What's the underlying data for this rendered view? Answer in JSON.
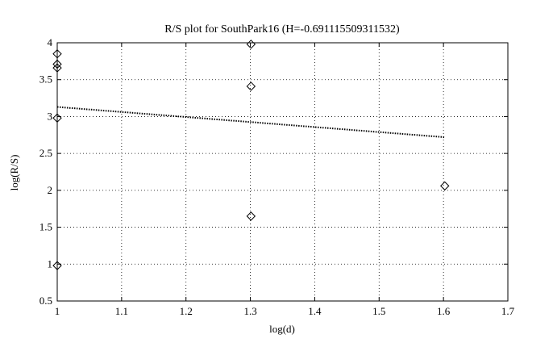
{
  "chart_data": {
    "type": "scatter",
    "title": "R/S plot for SouthPark16 (H=-0.691115509311532)",
    "xlabel": "log(d)",
    "ylabel": "log(R/S)",
    "xlim": [
      1,
      1.7
    ],
    "ylim": [
      0.5,
      4
    ],
    "xticks": [
      "1",
      "1.1",
      "1.2",
      "1.3",
      "1.4",
      "1.5",
      "1.6",
      "1.7"
    ],
    "yticks": [
      "0.5",
      "1",
      "1.5",
      "2",
      "2.5",
      "3",
      "3.5",
      "4"
    ],
    "grid": true,
    "points": [
      {
        "x": 1.0,
        "y": 0.98
      },
      {
        "x": 1.0,
        "y": 2.98
      },
      {
        "x": 1.0,
        "y": 3.66
      },
      {
        "x": 1.0,
        "y": 3.71
      },
      {
        "x": 1.0,
        "y": 3.85
      },
      {
        "x": 1.301,
        "y": 1.65
      },
      {
        "x": 1.301,
        "y": 3.41
      },
      {
        "x": 1.301,
        "y": 3.98
      },
      {
        "x": 1.602,
        "y": 2.06
      }
    ],
    "fit_line": {
      "x": [
        1.0,
        1.602
      ],
      "y": [
        3.13,
        2.72
      ]
    }
  }
}
